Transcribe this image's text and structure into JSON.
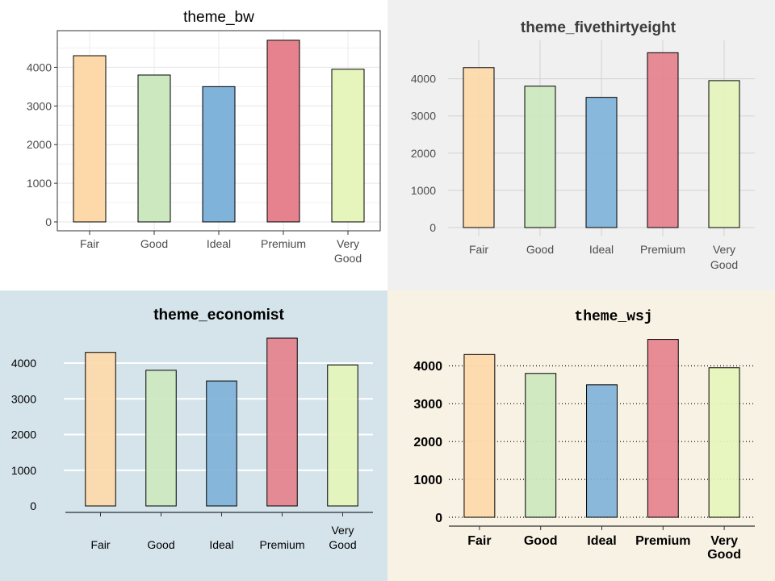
{
  "colors": {
    "bar_fills": [
      "#fdd9a9",
      "#cce8be",
      "#7fb3d9",
      "#e5828d",
      "#e5f5bb"
    ],
    "bw_background": "#ffffff",
    "fivethirtyeight_background": "#f0f0f0",
    "economist_background": "#d5e4eb",
    "wsj_background": "#f8f2e4"
  },
  "chart_data": [
    {
      "type": "bar",
      "title": "theme_bw",
      "categories": [
        "Fair",
        "Good",
        "Ideal",
        "Premium",
        "Very Good"
      ],
      "values": [
        4300,
        3800,
        3500,
        4700,
        3950
      ],
      "xlabel": "",
      "ylabel": "",
      "ylim": [
        0,
        4800
      ],
      "yticks": [
        "0",
        "1000",
        "2000",
        "3000",
        "4000"
      ],
      "grid": true,
      "legend": "none"
    },
    {
      "type": "bar",
      "title": "theme_fivethirtyeight",
      "categories": [
        "Fair",
        "Good",
        "Ideal",
        "Premium",
        "Very Good"
      ],
      "values": [
        4300,
        3800,
        3500,
        4700,
        3950
      ],
      "xlabel": "",
      "ylabel": "",
      "ylim": [
        0,
        4800
      ],
      "yticks": [
        "0",
        "1000",
        "2000",
        "3000",
        "4000"
      ],
      "grid": true,
      "legend": "none"
    },
    {
      "type": "bar",
      "title": "theme_economist",
      "categories": [
        "Fair",
        "Good",
        "Ideal",
        "Premium",
        "Very Good"
      ],
      "values": [
        4300,
        3800,
        3500,
        4700,
        3950
      ],
      "xlabel": "",
      "ylabel": "",
      "ylim": [
        0,
        4800
      ],
      "yticks": [
        "0",
        "1000",
        "2000",
        "3000",
        "4000"
      ],
      "grid": true,
      "legend": "none"
    },
    {
      "type": "bar",
      "title": "theme_wsj",
      "categories": [
        "Fair",
        "Good",
        "Ideal",
        "Premium",
        "Very Good"
      ],
      "values": [
        4300,
        3800,
        3500,
        4700,
        3950
      ],
      "xlabel": "",
      "ylabel": "",
      "ylim": [
        0,
        4800
      ],
      "yticks": [
        "0",
        "1000",
        "2000",
        "3000",
        "4000"
      ],
      "grid": true,
      "legend": "none"
    }
  ]
}
